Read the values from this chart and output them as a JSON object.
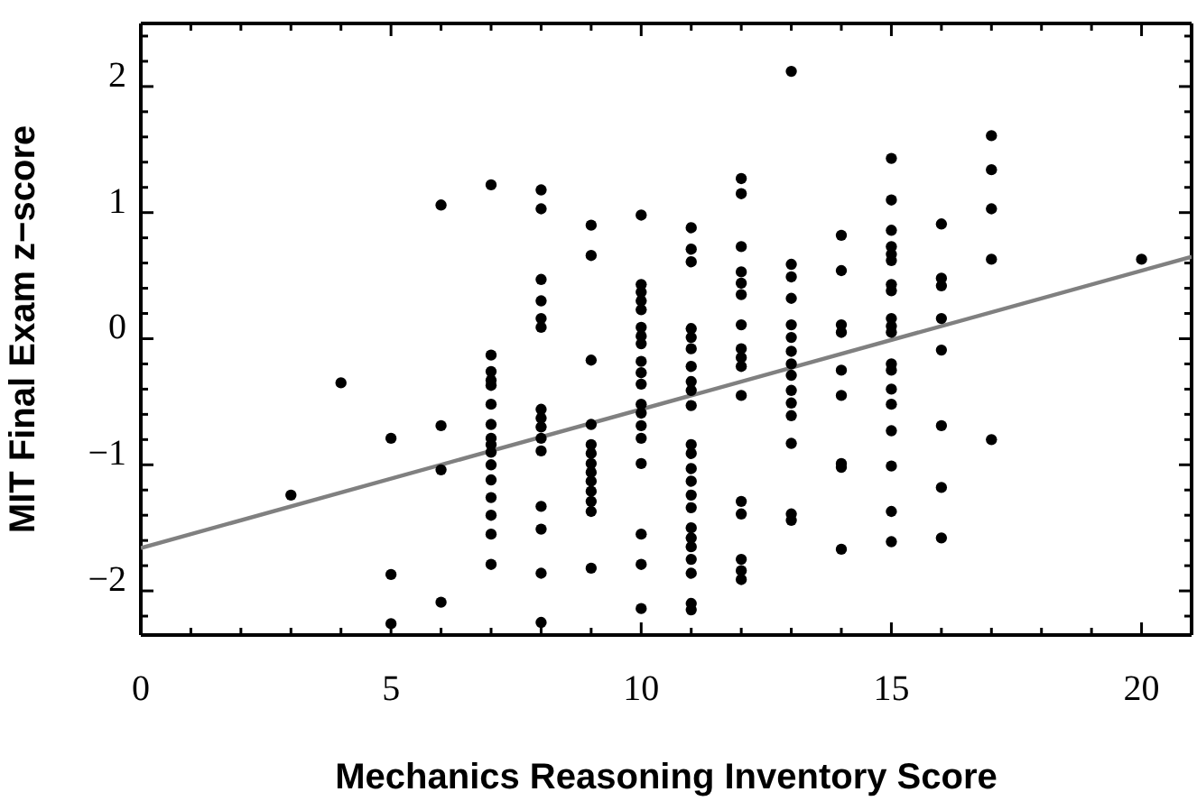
{
  "chart_data": {
    "type": "scatter",
    "xlabel": "Mechanics Reasoning Inventory Score",
    "ylabel": "MIT Final Exam z−score",
    "xlim": [
      0,
      21
    ],
    "ylim": [
      -2.35,
      2.5
    ],
    "xticks": [
      0,
      {
        "value": 1,
        "label": null
      },
      {
        "value": 2,
        "label": null
      },
      {
        "value": 3,
        "label": null
      },
      {
        "value": 4,
        "label": null
      },
      5,
      {
        "value": 6,
        "label": null
      },
      {
        "value": 7,
        "label": null
      },
      {
        "value": 8,
        "label": null
      },
      {
        "value": 9,
        "label": null
      },
      10,
      {
        "value": 11,
        "label": null
      },
      {
        "value": 12,
        "label": null
      },
      {
        "value": 13,
        "label": null
      },
      {
        "value": 14,
        "label": null
      },
      15,
      {
        "value": 16,
        "label": null
      },
      {
        "value": 17,
        "label": null
      },
      {
        "value": 18,
        "label": null
      },
      {
        "value": 19,
        "label": null
      },
      20
    ],
    "yticks": [
      {
        "value": -2.2,
        "label": null
      },
      {
        "value": -2,
        "label": "−2"
      },
      {
        "value": -1.8,
        "label": null
      },
      {
        "value": -1.6,
        "label": null
      },
      {
        "value": -1.4,
        "label": null
      },
      {
        "value": -1.2,
        "label": null
      },
      {
        "value": -1,
        "label": "−1"
      },
      {
        "value": -0.8,
        "label": null
      },
      {
        "value": -0.6,
        "label": null
      },
      {
        "value": -0.4,
        "label": null
      },
      {
        "value": -0.2,
        "label": null
      },
      0,
      {
        "value": 0.2,
        "label": null
      },
      {
        "value": 0.4,
        "label": null
      },
      {
        "value": 0.6,
        "label": null
      },
      {
        "value": 0.8,
        "label": null
      },
      1,
      {
        "value": 1.2,
        "label": null
      },
      {
        "value": 1.4,
        "label": null
      },
      {
        "value": 1.6,
        "label": null
      },
      {
        "value": 1.8,
        "label": null
      },
      2,
      {
        "value": 2.2,
        "label": null
      },
      {
        "value": 2.4,
        "label": null
      }
    ],
    "grid": false,
    "series": [
      {
        "marker": "circle",
        "color": "#000000",
        "x": [
          3,
          4,
          5,
          5,
          5,
          6,
          6,
          6,
          6,
          7,
          7,
          7,
          7,
          7,
          7,
          7,
          7,
          7,
          7,
          7,
          7,
          7,
          7,
          7,
          7,
          8,
          8,
          8,
          8,
          8,
          8,
          8,
          8,
          8,
          8,
          8,
          8,
          8,
          8,
          8,
          9,
          9,
          9,
          9,
          9,
          9,
          9,
          9,
          9,
          9,
          9,
          9,
          9,
          10,
          10,
          10,
          10,
          10,
          10,
          10,
          10,
          10,
          10,
          10,
          10,
          10,
          10,
          10,
          10,
          10,
          10,
          10,
          11,
          11,
          11,
          11,
          11,
          11,
          11,
          11,
          11,
          11,
          11,
          11,
          11,
          11,
          11,
          11,
          11,
          11,
          11,
          11,
          11,
          11,
          11,
          12,
          12,
          12,
          12,
          12,
          12,
          12,
          12,
          12,
          12,
          12,
          12,
          12,
          12,
          12,
          12,
          13,
          13,
          13,
          13,
          13,
          13,
          13,
          13,
          13,
          13,
          13,
          13,
          13,
          13,
          13,
          14,
          14,
          14,
          14,
          14,
          14,
          14,
          14,
          14,
          15,
          15,
          15,
          15,
          15,
          15,
          15,
          15,
          15,
          15,
          15,
          15,
          15,
          15,
          15,
          15,
          15,
          15,
          15,
          16,
          16,
          16,
          16,
          16,
          16,
          16,
          16,
          17,
          17,
          17,
          17,
          17,
          20
        ],
        "values": [
          -1.24,
          -0.35,
          -0.79,
          -1.87,
          -2.26,
          1.06,
          -0.69,
          -1.04,
          -2.09,
          1.22,
          -0.13,
          -0.26,
          -0.33,
          -0.37,
          -0.52,
          -0.68,
          -0.79,
          -0.84,
          -0.9,
          -1.0,
          -1.12,
          -1.26,
          -1.4,
          -1.55,
          -1.79,
          1.18,
          1.03,
          0.47,
          0.3,
          0.16,
          0.09,
          -0.56,
          -0.63,
          -0.7,
          -0.79,
          -0.89,
          -1.33,
          -1.51,
          -1.86,
          -2.25,
          0.9,
          0.66,
          -0.17,
          -0.68,
          -0.84,
          -0.91,
          -0.99,
          -1.06,
          -1.13,
          -1.21,
          -1.29,
          -1.37,
          -1.82,
          0.98,
          0.43,
          0.37,
          0.3,
          0.23,
          0.09,
          0.02,
          -0.04,
          -0.18,
          -0.27,
          -0.36,
          -0.52,
          -0.59,
          -0.69,
          -0.79,
          -0.99,
          -1.55,
          -1.79,
          -2.14,
          0.88,
          0.71,
          0.61,
          0.08,
          0.01,
          -0.08,
          -0.22,
          -0.34,
          -0.41,
          -0.53,
          -0.84,
          -0.91,
          -1.03,
          -1.13,
          -1.24,
          -1.34,
          -1.5,
          -1.58,
          -1.65,
          -1.75,
          -1.86,
          -2.1,
          -2.15,
          1.27,
          1.15,
          0.73,
          0.53,
          0.44,
          0.35,
          0.11,
          -0.08,
          -0.15,
          -0.22,
          -0.45,
          -1.29,
          -1.39,
          -1.75,
          -1.84,
          -1.91,
          2.12,
          0.59,
          0.49,
          0.32,
          0.11,
          0.01,
          -0.1,
          -0.2,
          -0.29,
          -0.41,
          -0.51,
          -0.61,
          -0.83,
          -1.39,
          -1.44,
          0.82,
          0.54,
          0.11,
          0.05,
          -0.25,
          -0.45,
          -0.99,
          -1.02,
          -1.67,
          1.43,
          1.1,
          0.86,
          0.73,
          0.67,
          0.62,
          0.43,
          0.38,
          0.16,
          0.1,
          0.05,
          -0.2,
          -0.25,
          -0.4,
          -0.52,
          -0.73,
          -1.01,
          -1.37,
          -1.61,
          0.91,
          0.48,
          0.42,
          0.16,
          -0.09,
          -0.69,
          -1.18,
          -1.58,
          1.61,
          1.34,
          1.03,
          0.63,
          -0.8,
          0.63
        ]
      },
      {
        "type": "line",
        "marker": "none",
        "color": "#808080",
        "x": [
          0,
          21
        ],
        "values": [
          -1.66,
          0.65
        ]
      }
    ]
  }
}
